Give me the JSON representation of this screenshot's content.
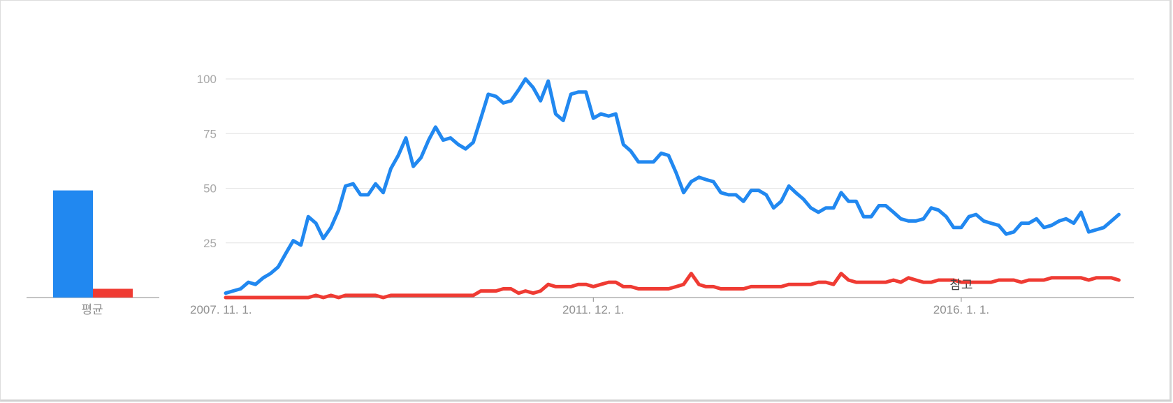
{
  "colors": {
    "blue": "#2188f0",
    "red": "#ef3b33",
    "grid": "#e2e2e2",
    "axis": "#8a8a8a"
  },
  "average_panel": {
    "label": "평균"
  },
  "annotation": {
    "label": "참고"
  },
  "chart_data": [
    {
      "type": "bar",
      "categories": [
        "평균"
      ],
      "series": [
        {
          "color": "#2188f0",
          "values": [
            49
          ]
        },
        {
          "color": "#ef3b33",
          "values": [
            4
          ]
        }
      ],
      "ylim": [
        0,
        100
      ]
    },
    {
      "type": "line",
      "ylim": [
        0,
        100
      ],
      "yticks": [
        25,
        50,
        75,
        100
      ],
      "ytick_labels": [
        "25",
        "50",
        "75",
        "100"
      ],
      "xticks": [
        {
          "x": "2007-11-01",
          "label": "2007. 11. 1."
        },
        {
          "x": "2011-12-01",
          "label": "2011. 12. 1."
        },
        {
          "x": "2016-01-01",
          "label": "2016. 1. 1."
        }
      ],
      "xlim": [
        "2007-11-01",
        "2017-12-01"
      ],
      "grid": true,
      "annotation": {
        "x": "2016-01-01",
        "text": "참고"
      },
      "series": [
        {
          "color": "#2188f0",
          "points": [
            [
              "2007-11-01",
              2
            ],
            [
              "2007-12-01",
              3
            ],
            [
              "2008-01-01",
              4
            ],
            [
              "2008-02-01",
              7
            ],
            [
              "2008-03-01",
              6
            ],
            [
              "2008-04-01",
              9
            ],
            [
              "2008-05-01",
              11
            ],
            [
              "2008-06-01",
              14
            ],
            [
              "2008-07-01",
              20
            ],
            [
              "2008-08-01",
              26
            ],
            [
              "2008-09-01",
              24
            ],
            [
              "2008-10-01",
              37
            ],
            [
              "2008-11-01",
              34
            ],
            [
              "2008-12-01",
              27
            ],
            [
              "2009-01-01",
              32
            ],
            [
              "2009-02-01",
              40
            ],
            [
              "2009-03-01",
              51
            ],
            [
              "2009-04-01",
              52
            ],
            [
              "2009-05-01",
              47
            ],
            [
              "2009-06-01",
              47
            ],
            [
              "2009-07-01",
              52
            ],
            [
              "2009-08-01",
              48
            ],
            [
              "2009-09-01",
              59
            ],
            [
              "2009-10-01",
              65
            ],
            [
              "2009-11-01",
              73
            ],
            [
              "2009-12-01",
              60
            ],
            [
              "2010-01-01",
              64
            ],
            [
              "2010-02-01",
              72
            ],
            [
              "2010-03-01",
              78
            ],
            [
              "2010-04-01",
              72
            ],
            [
              "2010-05-01",
              73
            ],
            [
              "2010-06-01",
              70
            ],
            [
              "2010-07-01",
              68
            ],
            [
              "2010-08-01",
              71
            ],
            [
              "2010-09-01",
              82
            ],
            [
              "2010-10-01",
              93
            ],
            [
              "2010-11-01",
              92
            ],
            [
              "2010-12-01",
              89
            ],
            [
              "2011-01-01",
              90
            ],
            [
              "2011-02-01",
              95
            ],
            [
              "2011-03-01",
              100
            ],
            [
              "2011-04-01",
              96
            ],
            [
              "2011-05-01",
              90
            ],
            [
              "2011-06-01",
              99
            ],
            [
              "2011-07-01",
              84
            ],
            [
              "2011-08-01",
              81
            ],
            [
              "2011-09-01",
              93
            ],
            [
              "2011-10-01",
              94
            ],
            [
              "2011-11-01",
              94
            ],
            [
              "2011-12-01",
              82
            ],
            [
              "2012-01-01",
              84
            ],
            [
              "2012-02-01",
              83
            ],
            [
              "2012-03-01",
              84
            ],
            [
              "2012-04-01",
              70
            ],
            [
              "2012-05-01",
              67
            ],
            [
              "2012-06-01",
              62
            ],
            [
              "2012-07-01",
              62
            ],
            [
              "2012-08-01",
              62
            ],
            [
              "2012-09-01",
              66
            ],
            [
              "2012-10-01",
              65
            ],
            [
              "2012-11-01",
              57
            ],
            [
              "2012-12-01",
              48
            ],
            [
              "2013-01-01",
              53
            ],
            [
              "2013-02-01",
              55
            ],
            [
              "2013-03-01",
              54
            ],
            [
              "2013-04-01",
              53
            ],
            [
              "2013-05-01",
              48
            ],
            [
              "2013-06-01",
              47
            ],
            [
              "2013-07-01",
              47
            ],
            [
              "2013-08-01",
              44
            ],
            [
              "2013-09-01",
              49
            ],
            [
              "2013-10-01",
              49
            ],
            [
              "2013-11-01",
              47
            ],
            [
              "2013-12-01",
              41
            ],
            [
              "2014-01-01",
              44
            ],
            [
              "2014-02-01",
              51
            ],
            [
              "2014-03-01",
              48
            ],
            [
              "2014-04-01",
              45
            ],
            [
              "2014-05-01",
              41
            ],
            [
              "2014-06-01",
              39
            ],
            [
              "2014-07-01",
              41
            ],
            [
              "2014-08-01",
              41
            ],
            [
              "2014-09-01",
              48
            ],
            [
              "2014-10-01",
              44
            ],
            [
              "2014-11-01",
              44
            ],
            [
              "2014-12-01",
              37
            ],
            [
              "2015-01-01",
              37
            ],
            [
              "2015-02-01",
              42
            ],
            [
              "2015-03-01",
              42
            ],
            [
              "2015-04-01",
              39
            ],
            [
              "2015-05-01",
              36
            ],
            [
              "2015-06-01",
              35
            ],
            [
              "2015-07-01",
              35
            ],
            [
              "2015-08-01",
              36
            ],
            [
              "2015-09-01",
              41
            ],
            [
              "2015-10-01",
              40
            ],
            [
              "2015-11-01",
              37
            ],
            [
              "2015-12-01",
              32
            ],
            [
              "2016-01-01",
              32
            ],
            [
              "2016-02-01",
              37
            ],
            [
              "2016-03-01",
              38
            ],
            [
              "2016-04-01",
              35
            ],
            [
              "2016-05-01",
              34
            ],
            [
              "2016-06-01",
              33
            ],
            [
              "2016-07-01",
              29
            ],
            [
              "2016-08-01",
              30
            ],
            [
              "2016-09-01",
              34
            ],
            [
              "2016-10-01",
              34
            ],
            [
              "2016-11-01",
              36
            ],
            [
              "2016-12-01",
              32
            ],
            [
              "2017-01-01",
              33
            ],
            [
              "2017-02-01",
              35
            ],
            [
              "2017-03-01",
              36
            ],
            [
              "2017-04-01",
              34
            ],
            [
              "2017-05-01",
              39
            ],
            [
              "2017-06-01",
              30
            ],
            [
              "2017-07-01",
              31
            ],
            [
              "2017-08-01",
              32
            ],
            [
              "2017-09-01",
              35
            ],
            [
              "2017-10-01",
              38
            ]
          ]
        },
        {
          "color": "#ef3b33",
          "points": [
            [
              "2007-11-01",
              0
            ],
            [
              "2007-12-01",
              0
            ],
            [
              "2008-01-01",
              0
            ],
            [
              "2008-02-01",
              0
            ],
            [
              "2008-03-01",
              0
            ],
            [
              "2008-04-01",
              0
            ],
            [
              "2008-05-01",
              0
            ],
            [
              "2008-06-01",
              0
            ],
            [
              "2008-07-01",
              0
            ],
            [
              "2008-08-01",
              0
            ],
            [
              "2008-09-01",
              0
            ],
            [
              "2008-10-01",
              0
            ],
            [
              "2008-11-01",
              1
            ],
            [
              "2008-12-01",
              0
            ],
            [
              "2009-01-01",
              1
            ],
            [
              "2009-02-01",
              0
            ],
            [
              "2009-03-01",
              1
            ],
            [
              "2009-04-01",
              1
            ],
            [
              "2009-05-01",
              1
            ],
            [
              "2009-06-01",
              1
            ],
            [
              "2009-07-01",
              1
            ],
            [
              "2009-08-01",
              0
            ],
            [
              "2009-09-01",
              1
            ],
            [
              "2009-10-01",
              1
            ],
            [
              "2009-11-01",
              1
            ],
            [
              "2009-12-01",
              1
            ],
            [
              "2010-01-01",
              1
            ],
            [
              "2010-02-01",
              1
            ],
            [
              "2010-03-01",
              1
            ],
            [
              "2010-04-01",
              1
            ],
            [
              "2010-05-01",
              1
            ],
            [
              "2010-06-01",
              1
            ],
            [
              "2010-07-01",
              1
            ],
            [
              "2010-08-01",
              1
            ],
            [
              "2010-09-01",
              3
            ],
            [
              "2010-10-01",
              3
            ],
            [
              "2010-11-01",
              3
            ],
            [
              "2010-12-01",
              4
            ],
            [
              "2011-01-01",
              4
            ],
            [
              "2011-02-01",
              2
            ],
            [
              "2011-03-01",
              3
            ],
            [
              "2011-04-01",
              2
            ],
            [
              "2011-05-01",
              3
            ],
            [
              "2011-06-01",
              6
            ],
            [
              "2011-07-01",
              5
            ],
            [
              "2011-08-01",
              5
            ],
            [
              "2011-09-01",
              5
            ],
            [
              "2011-10-01",
              6
            ],
            [
              "2011-11-01",
              6
            ],
            [
              "2011-12-01",
              5
            ],
            [
              "2012-01-01",
              6
            ],
            [
              "2012-02-01",
              7
            ],
            [
              "2012-03-01",
              7
            ],
            [
              "2012-04-01",
              5
            ],
            [
              "2012-05-01",
              5
            ],
            [
              "2012-06-01",
              4
            ],
            [
              "2012-07-01",
              4
            ],
            [
              "2012-08-01",
              4
            ],
            [
              "2012-09-01",
              4
            ],
            [
              "2012-10-01",
              4
            ],
            [
              "2012-11-01",
              5
            ],
            [
              "2012-12-01",
              6
            ],
            [
              "2013-01-01",
              11
            ],
            [
              "2013-02-01",
              6
            ],
            [
              "2013-03-01",
              5
            ],
            [
              "2013-04-01",
              5
            ],
            [
              "2013-05-01",
              4
            ],
            [
              "2013-06-01",
              4
            ],
            [
              "2013-07-01",
              4
            ],
            [
              "2013-08-01",
              4
            ],
            [
              "2013-09-01",
              5
            ],
            [
              "2013-10-01",
              5
            ],
            [
              "2013-11-01",
              5
            ],
            [
              "2013-12-01",
              5
            ],
            [
              "2014-01-01",
              5
            ],
            [
              "2014-02-01",
              6
            ],
            [
              "2014-03-01",
              6
            ],
            [
              "2014-04-01",
              6
            ],
            [
              "2014-05-01",
              6
            ],
            [
              "2014-06-01",
              7
            ],
            [
              "2014-07-01",
              7
            ],
            [
              "2014-08-01",
              6
            ],
            [
              "2014-09-01",
              11
            ],
            [
              "2014-10-01",
              8
            ],
            [
              "2014-11-01",
              7
            ],
            [
              "2014-12-01",
              7
            ],
            [
              "2015-01-01",
              7
            ],
            [
              "2015-02-01",
              7
            ],
            [
              "2015-03-01",
              7
            ],
            [
              "2015-04-01",
              8
            ],
            [
              "2015-05-01",
              7
            ],
            [
              "2015-06-01",
              9
            ],
            [
              "2015-07-01",
              8
            ],
            [
              "2015-08-01",
              7
            ],
            [
              "2015-09-01",
              7
            ],
            [
              "2015-10-01",
              8
            ],
            [
              "2015-11-01",
              8
            ],
            [
              "2015-12-01",
              8
            ],
            [
              "2016-01-01",
              7
            ],
            [
              "2016-02-01",
              7
            ],
            [
              "2016-03-01",
              7
            ],
            [
              "2016-04-01",
              7
            ],
            [
              "2016-05-01",
              7
            ],
            [
              "2016-06-01",
              8
            ],
            [
              "2016-07-01",
              8
            ],
            [
              "2016-08-01",
              8
            ],
            [
              "2016-09-01",
              7
            ],
            [
              "2016-10-01",
              8
            ],
            [
              "2016-11-01",
              8
            ],
            [
              "2016-12-01",
              8
            ],
            [
              "2017-01-01",
              9
            ],
            [
              "2017-02-01",
              9
            ],
            [
              "2017-03-01",
              9
            ],
            [
              "2017-04-01",
              9
            ],
            [
              "2017-05-01",
              9
            ],
            [
              "2017-06-01",
              8
            ],
            [
              "2017-07-01",
              9
            ],
            [
              "2017-08-01",
              9
            ],
            [
              "2017-09-01",
              9
            ],
            [
              "2017-10-01",
              8
            ]
          ]
        }
      ]
    }
  ]
}
